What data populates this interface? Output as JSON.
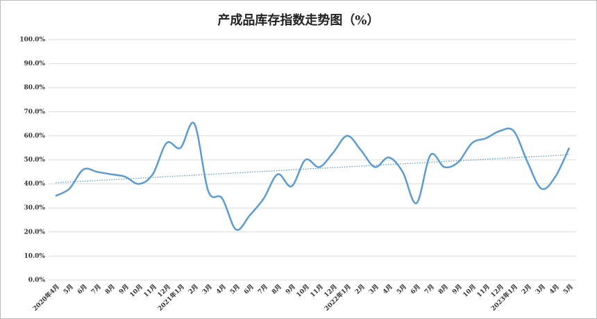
{
  "chart_data": {
    "type": "line",
    "title": "产成品库存指数走势图（%）",
    "categories": [
      "2020年4月",
      "5月",
      "6月",
      "7月",
      "8月",
      "9月",
      "10月",
      "11月",
      "12月",
      "2021年1月",
      "2月",
      "3月",
      "4月",
      "5月",
      "6月",
      "7月",
      "8月",
      "9月",
      "10月",
      "11月",
      "12月",
      "2022年1月",
      "2月",
      "3月",
      "4月",
      "5月",
      "6月",
      "7月",
      "8月",
      "9月",
      "10月",
      "11月",
      "12月",
      "2023年1月",
      "2月",
      "3月",
      "4月",
      "5月"
    ],
    "series": [
      {
        "name": "产成品库存指数",
        "color": "#5b9bd5",
        "values": [
          35,
          38,
          46,
          45,
          44,
          43,
          40,
          44,
          57,
          55,
          65,
          37,
          34,
          21,
          27,
          34,
          44,
          39,
          50,
          47,
          53,
          60,
          54,
          47,
          51,
          45,
          32,
          52,
          47,
          49,
          57,
          59,
          62,
          62,
          49,
          38,
          43,
          55
        ]
      }
    ],
    "ylim": [
      0,
      100
    ],
    "yticks": [
      {
        "value": 0,
        "label": "0.0%"
      },
      {
        "value": 10,
        "label": "10.0%"
      },
      {
        "value": 20,
        "label": "20.0%"
      },
      {
        "value": 30,
        "label": "30.0%"
      },
      {
        "value": 40,
        "label": "40.0%"
      },
      {
        "value": 50,
        "label": "50.0%"
      },
      {
        "value": 60,
        "label": "60.0%"
      },
      {
        "value": 70,
        "label": "70.0%"
      },
      {
        "value": 80,
        "label": "80.0%"
      },
      {
        "value": 90,
        "label": "90.0%"
      },
      {
        "value": 100,
        "label": "100.0%"
      }
    ],
    "grid": true,
    "trendline": true,
    "smooth": true
  }
}
